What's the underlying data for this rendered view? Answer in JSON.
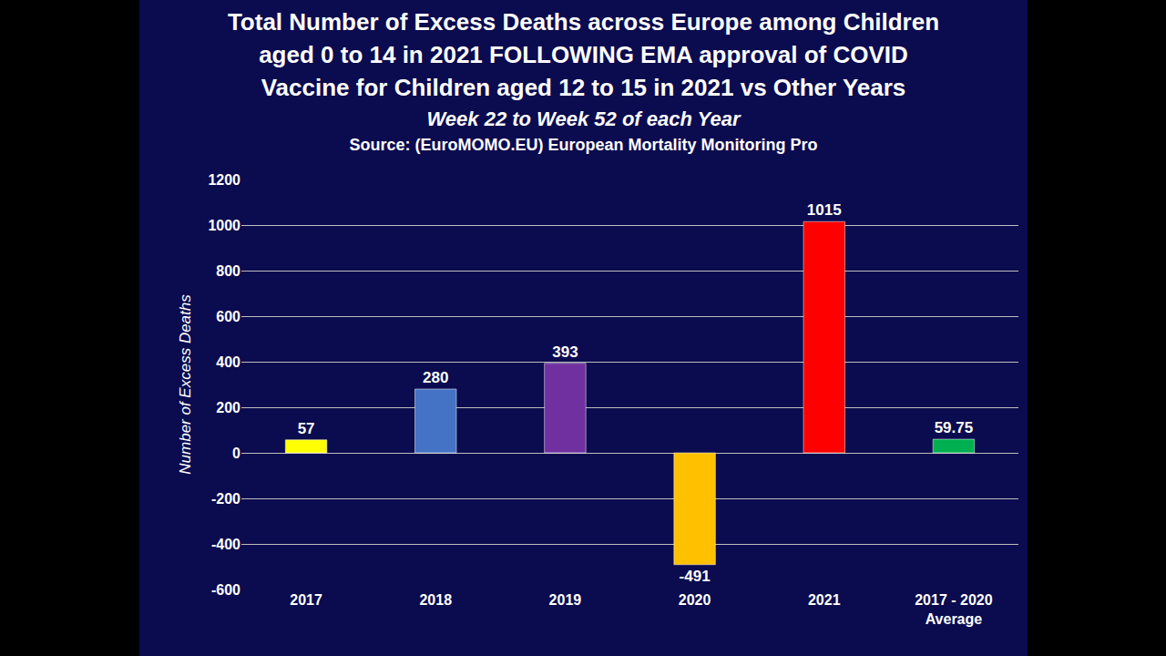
{
  "chart_data": {
    "type": "bar",
    "title": "Total Number of Excess Deaths across Europe among Children aged 0 to 14 in 2021 FOLLOWING EMA approval of COVID Vaccine for Children aged 12 to 15 in 2021 vs Other Years",
    "subtitle": "Week 22 to Week 52 of each Year",
    "source": "Source: (EuroMOMO.EU) European Mortality Monitoring Pro",
    "y_label": "Number of Excess Deaths",
    "categories": [
      "2017",
      "2018",
      "2019",
      "2020",
      "2021",
      "2017 - 2020 Average"
    ],
    "values": [
      57,
      280,
      393,
      -491,
      1015,
      59.75
    ],
    "colors": [
      "#ffff00",
      "#4472c4",
      "#7030a0",
      "#ffc000",
      "#ff0000",
      "#00b050"
    ],
    "ylim": [
      -600,
      1200
    ],
    "yticks": [
      -600,
      -400,
      -200,
      0,
      200,
      400,
      600,
      800,
      1000,
      1200
    ],
    "grid": true,
    "data_labels": true
  }
}
